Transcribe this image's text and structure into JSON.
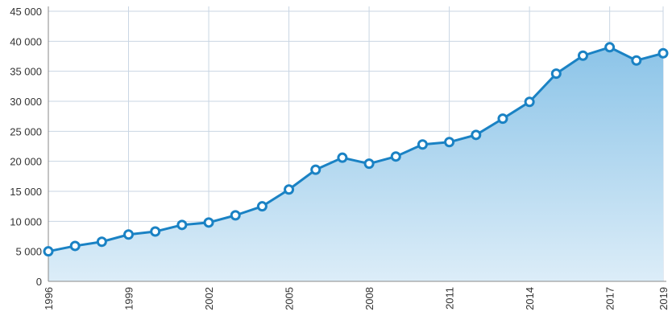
{
  "chart_data": {
    "type": "area",
    "title": "",
    "xlabel": "",
    "ylabel": "",
    "x": [
      1996,
      1997,
      1998,
      1999,
      2000,
      2001,
      2002,
      2003,
      2004,
      2005,
      2006,
      2007,
      2008,
      2009,
      2010,
      2011,
      2012,
      2013,
      2014,
      2015,
      2016,
      2017,
      2018,
      2019
    ],
    "series": [
      {
        "values": [
          5000,
          5900,
          6600,
          7800,
          8300,
          9400,
          9800,
          11000,
          12500,
          15300,
          18600,
          20600,
          19600,
          20800,
          22800,
          23200,
          24400,
          27100,
          29900,
          34600,
          37600,
          39000,
          36800,
          38000
        ]
      }
    ],
    "ylim": [
      0,
      45000
    ],
    "xlim": [
      1996,
      2019
    ],
    "y_ticks": [
      "0",
      "5 000",
      "10 000",
      "15 000",
      "20 000",
      "25 000",
      "30 000",
      "35 000",
      "40 000",
      "45 000"
    ],
    "x_ticks": [
      "1996",
      "1999",
      "2002",
      "2005",
      "2008",
      "2011",
      "2014",
      "2017",
      "2019"
    ],
    "grid": true,
    "colors": {
      "line": "#1a82c4",
      "area_top": "#8cc4e8",
      "area_bottom": "#dcedf8",
      "marker_fill": "#ffffff",
      "grid": "#c9d6e3"
    }
  }
}
